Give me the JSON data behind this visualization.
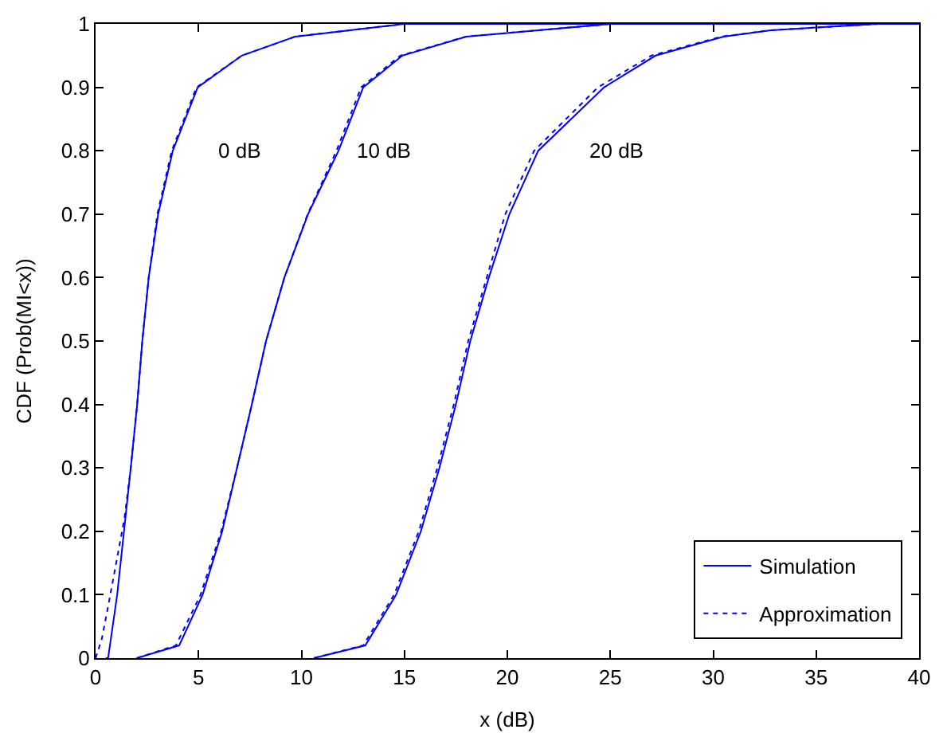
{
  "chart_data": {
    "type": "line",
    "xlabel": "x (dB)",
    "ylabel": "CDF (Prob(MI<x))",
    "xlim": [
      0,
      40
    ],
    "ylim": [
      0,
      1
    ],
    "xticks": [
      0,
      5,
      10,
      15,
      20,
      25,
      30,
      35,
      40
    ],
    "yticks": [
      0,
      0.1,
      0.2,
      0.3,
      0.4,
      0.5,
      0.6,
      0.7,
      0.8,
      0.9,
      1
    ],
    "legend": "bottom right",
    "marker": "none",
    "series": [
      {
        "name": "Simulation",
        "color": "#0000ff",
        "line_style": "solid",
        "x": [
          0.5,
          0.61,
          1.05,
          1.38,
          1.71,
          2.02,
          2.27,
          2.58,
          3.04,
          3.75,
          4.96,
          7.1,
          9.7,
          15,
          40
        ],
        "values": [
          0,
          0,
          0.1,
          0.2,
          0.3,
          0.4,
          0.5,
          0.6,
          0.7,
          0.8,
          0.9,
          0.95,
          0.98,
          1,
          1
        ]
      },
      {
        "name": "Approximation",
        "color": "#0000ff",
        "line_style": "dotted",
        "x": [
          0,
          0.3,
          0.6,
          1.0,
          1.4,
          1.71,
          2.02,
          2.27,
          2.58,
          3.0,
          3.7,
          4.9,
          7.1,
          9.7,
          15,
          40
        ],
        "values": [
          0,
          0.03,
          0.08,
          0.15,
          0.22,
          0.3,
          0.4,
          0.5,
          0.6,
          0.7,
          0.8,
          0.9,
          0.95,
          0.98,
          1,
          1
        ]
      },
      {
        "color": "#0000ff",
        "line_style": "solid",
        "x": [
          2.0,
          4.06,
          5.2,
          6.15,
          6.87,
          7.59,
          8.28,
          9.17,
          10.32,
          11.8,
          13.0,
          14.9,
          18.0,
          25,
          40
        ],
        "values": [
          0,
          0.02,
          0.1,
          0.2,
          0.3,
          0.4,
          0.5,
          0.6,
          0.7,
          0.8,
          0.9,
          0.95,
          0.98,
          1,
          1
        ]
      },
      {
        "color": "#0000ff",
        "line_style": "dotted",
        "x": [
          2.0,
          3.9,
          5.1,
          6.1,
          6.87,
          7.59,
          8.28,
          9.17,
          10.3,
          11.7,
          12.9,
          14.8,
          18.0,
          25,
          40
        ],
        "values": [
          0,
          0.02,
          0.1,
          0.2,
          0.3,
          0.4,
          0.5,
          0.6,
          0.7,
          0.8,
          0.9,
          0.95,
          0.98,
          1,
          1
        ]
      },
      {
        "color": "#0000ff",
        "line_style": "solid",
        "x": [
          10.6,
          13.1,
          14.6,
          15.8,
          16.7,
          17.5,
          18.2,
          19.1,
          20.1,
          21.5,
          24.7,
          27.2,
          30.5,
          32.8,
          38,
          40
        ],
        "values": [
          0,
          0.02,
          0.1,
          0.2,
          0.3,
          0.4,
          0.5,
          0.6,
          0.7,
          0.8,
          0.9,
          0.95,
          0.98,
          0.99,
          1,
          1
        ]
      },
      {
        "color": "#0000ff",
        "line_style": "dotted",
        "x": [
          10.6,
          13.0,
          14.5,
          15.7,
          16.6,
          17.4,
          18.1,
          19.0,
          19.9,
          21.3,
          24.4,
          27.0,
          30.4,
          32.8,
          38,
          40
        ],
        "values": [
          0,
          0.02,
          0.1,
          0.2,
          0.3,
          0.4,
          0.5,
          0.6,
          0.7,
          0.8,
          0.9,
          0.95,
          0.98,
          0.99,
          1,
          1
        ]
      }
    ],
    "annotations": [
      "0 dB",
      "10 dB",
      "20 dB"
    ]
  }
}
